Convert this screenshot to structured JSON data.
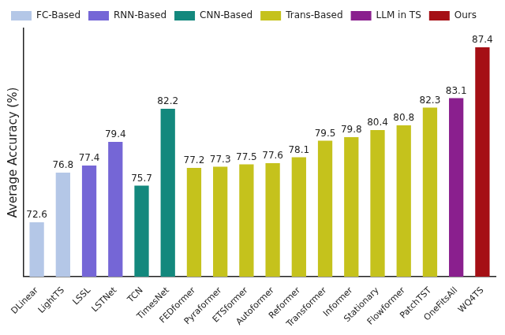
{
  "chart_data": {
    "type": "bar",
    "y_label": "Average Accuracy (%)",
    "categories": [
      "DLinear",
      "LightTS",
      "LSSL",
      "LSTNet",
      "TCN",
      "TimesNet",
      "FEDformer",
      "Pyraformer",
      "ETSformer",
      "Autoformer",
      "Reformer",
      "Transformer",
      "Informer",
      "Stationary",
      "Flowformer",
      "PatchTST",
      "OneFitsAll",
      "WQ4TS"
    ],
    "series": [
      {
        "name": "FC-Based",
        "color": "#b4c7e7",
        "values": [
          72.6,
          76.8,
          null,
          null,
          null,
          null,
          null,
          null,
          null,
          null,
          null,
          null,
          null,
          null,
          null,
          null,
          null,
          null
        ]
      },
      {
        "name": "RNN-Based",
        "color": "#7566d6",
        "values": [
          null,
          null,
          77.4,
          79.4,
          null,
          null,
          null,
          null,
          null,
          null,
          null,
          null,
          null,
          null,
          null,
          null,
          null,
          null
        ]
      },
      {
        "name": "CNN-Based",
        "color": "#13887d",
        "values": [
          null,
          null,
          null,
          null,
          75.7,
          82.2,
          null,
          null,
          null,
          null,
          null,
          null,
          null,
          null,
          null,
          null,
          null,
          null
        ]
      },
      {
        "name": "Trans-Based",
        "color": "#c5c21c",
        "values": [
          null,
          null,
          null,
          null,
          null,
          null,
          77.2,
          77.3,
          77.5,
          77.6,
          78.1,
          79.5,
          79.8,
          80.4,
          80.8,
          82.3,
          null,
          null
        ]
      },
      {
        "name": "LLM in TS",
        "color": "#8a1f8e",
        "values": [
          null,
          null,
          null,
          null,
          null,
          null,
          null,
          null,
          null,
          null,
          null,
          null,
          null,
          null,
          null,
          null,
          83.1,
          null
        ]
      },
      {
        "name": "Ours",
        "color": "#a50f15",
        "values": [
          null,
          null,
          null,
          null,
          null,
          null,
          null,
          null,
          null,
          null,
          null,
          null,
          null,
          null,
          null,
          null,
          null,
          87.4
        ]
      }
    ],
    "ylim": [
      68,
      89
    ],
    "legend": "top",
    "data_labels": true,
    "tick_labels": "x",
    "grid": false
  }
}
